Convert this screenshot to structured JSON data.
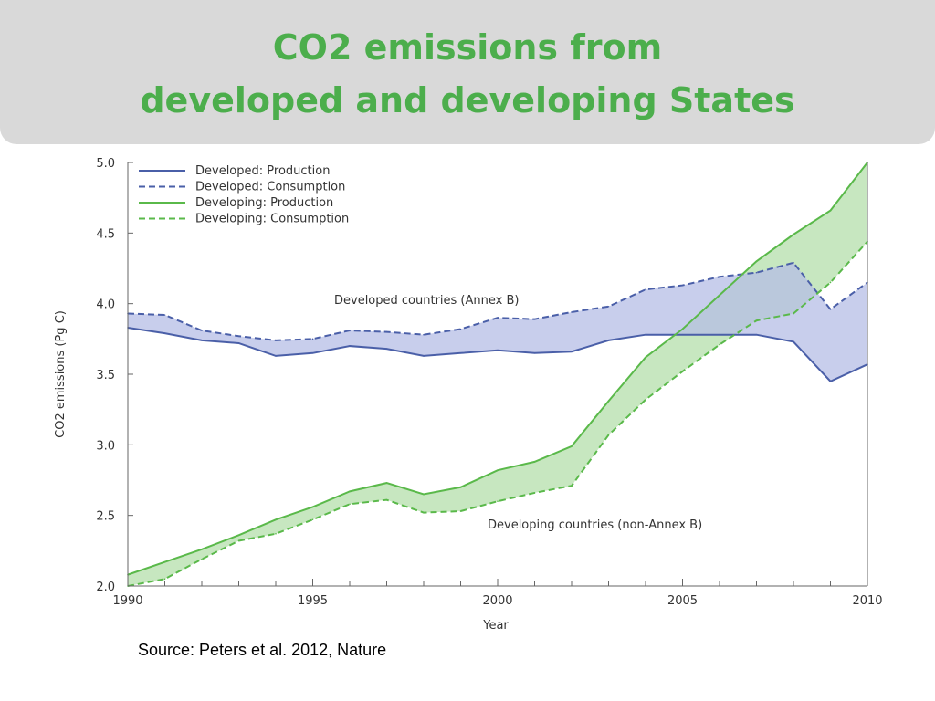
{
  "header": {
    "title_line1": "CO2 emissions from",
    "title_line2": "developed and developing States"
  },
  "source": "Source: Peters et al. 2012, Nature",
  "colors": {
    "developed": "#4a5fa8",
    "developed_fill": "#b5bde6",
    "developing": "#5ab94a",
    "developing_fill": "#b9e1b0",
    "title": "#4cae4c"
  },
  "chart_data": {
    "type": "area",
    "xlabel": "Year",
    "ylabel": "CO2 emissions (Pg C)",
    "xlim": [
      1990,
      2010
    ],
    "ylim": [
      2.0,
      5.0
    ],
    "xticks": [
      1990,
      1995,
      2000,
      2005,
      2010
    ],
    "yticks": [
      "2.0",
      "2.5",
      "3.0",
      "3.5",
      "4.0",
      "4.5",
      "5.0"
    ],
    "grid": false,
    "legend_position": "top-left",
    "x": [
      1990,
      1991,
      1992,
      1993,
      1994,
      1995,
      1996,
      1997,
      1998,
      1999,
      2000,
      2001,
      2002,
      2003,
      2004,
      2005,
      2006,
      2007,
      2008,
      2009,
      2010
    ],
    "series": [
      {
        "name": "Developed: Production",
        "group": "developed",
        "dash": false,
        "values": [
          3.83,
          3.79,
          3.74,
          3.72,
          3.63,
          3.65,
          3.7,
          3.68,
          3.63,
          3.65,
          3.67,
          3.65,
          3.66,
          3.74,
          3.78,
          3.78,
          3.78,
          3.78,
          3.73,
          3.45,
          3.57
        ]
      },
      {
        "name": "Developed: Consumption",
        "group": "developed",
        "dash": true,
        "values": [
          3.93,
          3.92,
          3.81,
          3.77,
          3.74,
          3.75,
          3.81,
          3.8,
          3.78,
          3.82,
          3.9,
          3.89,
          3.94,
          3.98,
          4.1,
          4.13,
          4.19,
          4.22,
          4.29,
          3.96,
          4.15
        ]
      },
      {
        "name": "Developing: Production",
        "group": "developing",
        "dash": false,
        "values": [
          2.08,
          2.17,
          2.26,
          2.36,
          2.47,
          2.56,
          2.67,
          2.73,
          2.65,
          2.7,
          2.82,
          2.88,
          2.99,
          3.31,
          3.62,
          3.82,
          4.06,
          4.3,
          4.49,
          4.66,
          5.0
        ]
      },
      {
        "name": "Developing: Consumption",
        "group": "developing",
        "dash": true,
        "values": [
          2.0,
          2.05,
          2.19,
          2.32,
          2.37,
          2.47,
          2.58,
          2.61,
          2.52,
          2.53,
          2.6,
          2.66,
          2.71,
          3.07,
          3.32,
          3.52,
          3.71,
          3.88,
          3.93,
          4.15,
          4.44
        ]
      }
    ],
    "bands": [
      {
        "label": "Developed countries (Annex B)",
        "group": "developed"
      },
      {
        "label": "Developing countries (non-Annex B)",
        "group": "developing"
      }
    ]
  }
}
